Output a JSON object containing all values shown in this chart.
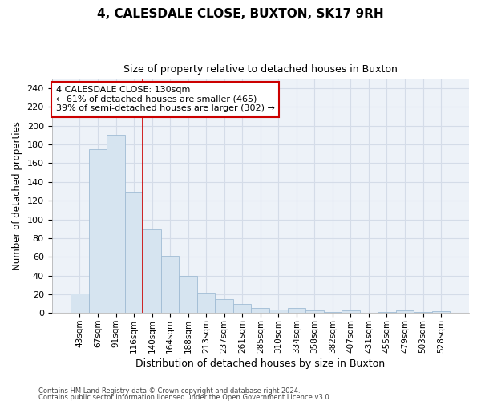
{
  "title1": "4, CALESDALE CLOSE, BUXTON, SK17 9RH",
  "title2": "Size of property relative to detached houses in Buxton",
  "xlabel": "Distribution of detached houses by size in Buxton",
  "ylabel": "Number of detached properties",
  "footer1": "Contains HM Land Registry data © Crown copyright and database right 2024.",
  "footer2": "Contains public sector information licensed under the Open Government Licence v3.0.",
  "bin_labels": [
    "43sqm",
    "67sqm",
    "91sqm",
    "116sqm",
    "140sqm",
    "164sqm",
    "188sqm",
    "213sqm",
    "237sqm",
    "261sqm",
    "285sqm",
    "310sqm",
    "334sqm",
    "358sqm",
    "382sqm",
    "407sqm",
    "431sqm",
    "455sqm",
    "479sqm",
    "503sqm",
    "528sqm"
  ],
  "bar_heights": [
    21,
    175,
    190,
    129,
    89,
    61,
    40,
    22,
    15,
    10,
    5,
    4,
    5,
    3,
    1,
    3,
    0,
    1,
    3,
    1,
    2
  ],
  "bar_color": "#d6e4f0",
  "bar_edge_color": "#a0bcd4",
  "ylim": [
    0,
    250
  ],
  "yticks": [
    0,
    20,
    40,
    60,
    80,
    100,
    120,
    140,
    160,
    180,
    200,
    220,
    240
  ],
  "red_line_x": 3.5,
  "annotation_text": "4 CALESDALE CLOSE: 130sqm\n← 61% of detached houses are smaller (465)\n39% of semi-detached houses are larger (302) →",
  "annotation_box_color": "#ffffff",
  "annotation_box_edge": "#cc0000",
  "red_line_color": "#cc0000",
  "grid_color": "#d4dce8",
  "bg_color": "#edf2f8"
}
